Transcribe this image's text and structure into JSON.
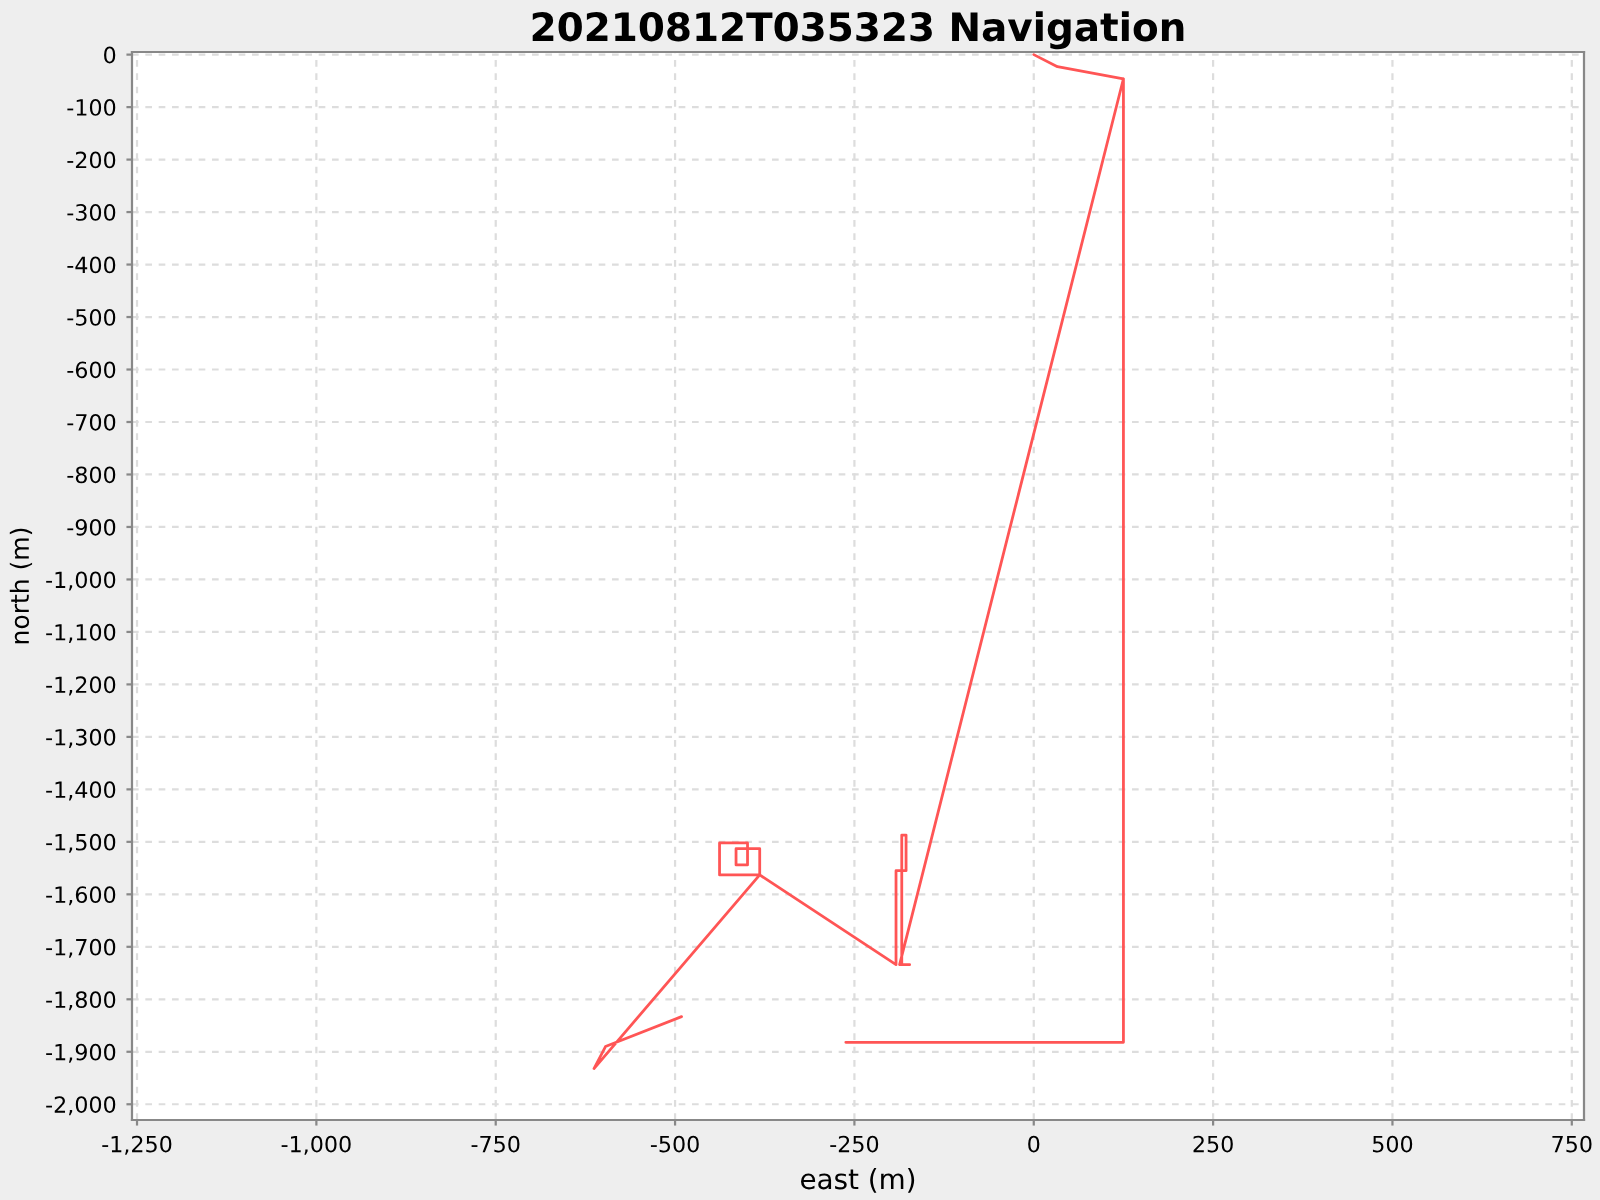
{
  "chart_data": {
    "type": "line",
    "title": "20210812T035323 Navigation",
    "xlabel": "east (m)",
    "ylabel": "north (m)",
    "series": [
      {
        "color": "#ff5555",
        "x": [
          0,
          33,
          125,
          125,
          -262,
          null,
          125,
          -187,
          -173,
          -184,
          -184,
          -178,
          -178,
          -184,
          -184,
          -192,
          -192,
          -382,
          -382,
          -415,
          -415,
          -399,
          -399,
          -438,
          -438,
          -382,
          -613,
          -597,
          -491
        ],
        "values": [
          0,
          -23,
          -46,
          -1882,
          -1882,
          null,
          -46,
          -1734,
          -1734,
          -1734,
          -1555,
          -1555,
          -1487,
          -1487,
          -1555,
          -1555,
          -1734,
          -1563,
          -1513,
          -1513,
          -1544,
          -1544,
          -1502,
          -1502,
          -1563,
          -1563,
          -1932,
          -1890,
          -1833
        ]
      }
    ],
    "xlim": [
      -1257,
      767
    ],
    "ylim": [
      -2030,
      5
    ],
    "xticks": [
      {
        "value": -1250,
        "label": "-1,250"
      },
      {
        "value": -1000,
        "label": "-1,000"
      },
      -750,
      -500,
      -250,
      0,
      250,
      500,
      750
    ],
    "yticks": [
      0,
      -100,
      -200,
      -300,
      -400,
      -500,
      -600,
      -700,
      -800,
      -900,
      {
        "value": -1000,
        "label": "-1,000"
      },
      {
        "value": -1100,
        "label": "-1,100"
      },
      {
        "value": -1200,
        "label": "-1,200"
      },
      {
        "value": -1300,
        "label": "-1,300"
      },
      {
        "value": -1400,
        "label": "-1,400"
      },
      {
        "value": -1500,
        "label": "-1,500"
      },
      {
        "value": -1600,
        "label": "-1,600"
      },
      {
        "value": -1700,
        "label": "-1,700"
      },
      {
        "value": -1800,
        "label": "-1,800"
      },
      {
        "value": -1900,
        "label": "-1,900"
      },
      {
        "value": -2000,
        "label": "-2,000"
      }
    ],
    "grid": true
  }
}
